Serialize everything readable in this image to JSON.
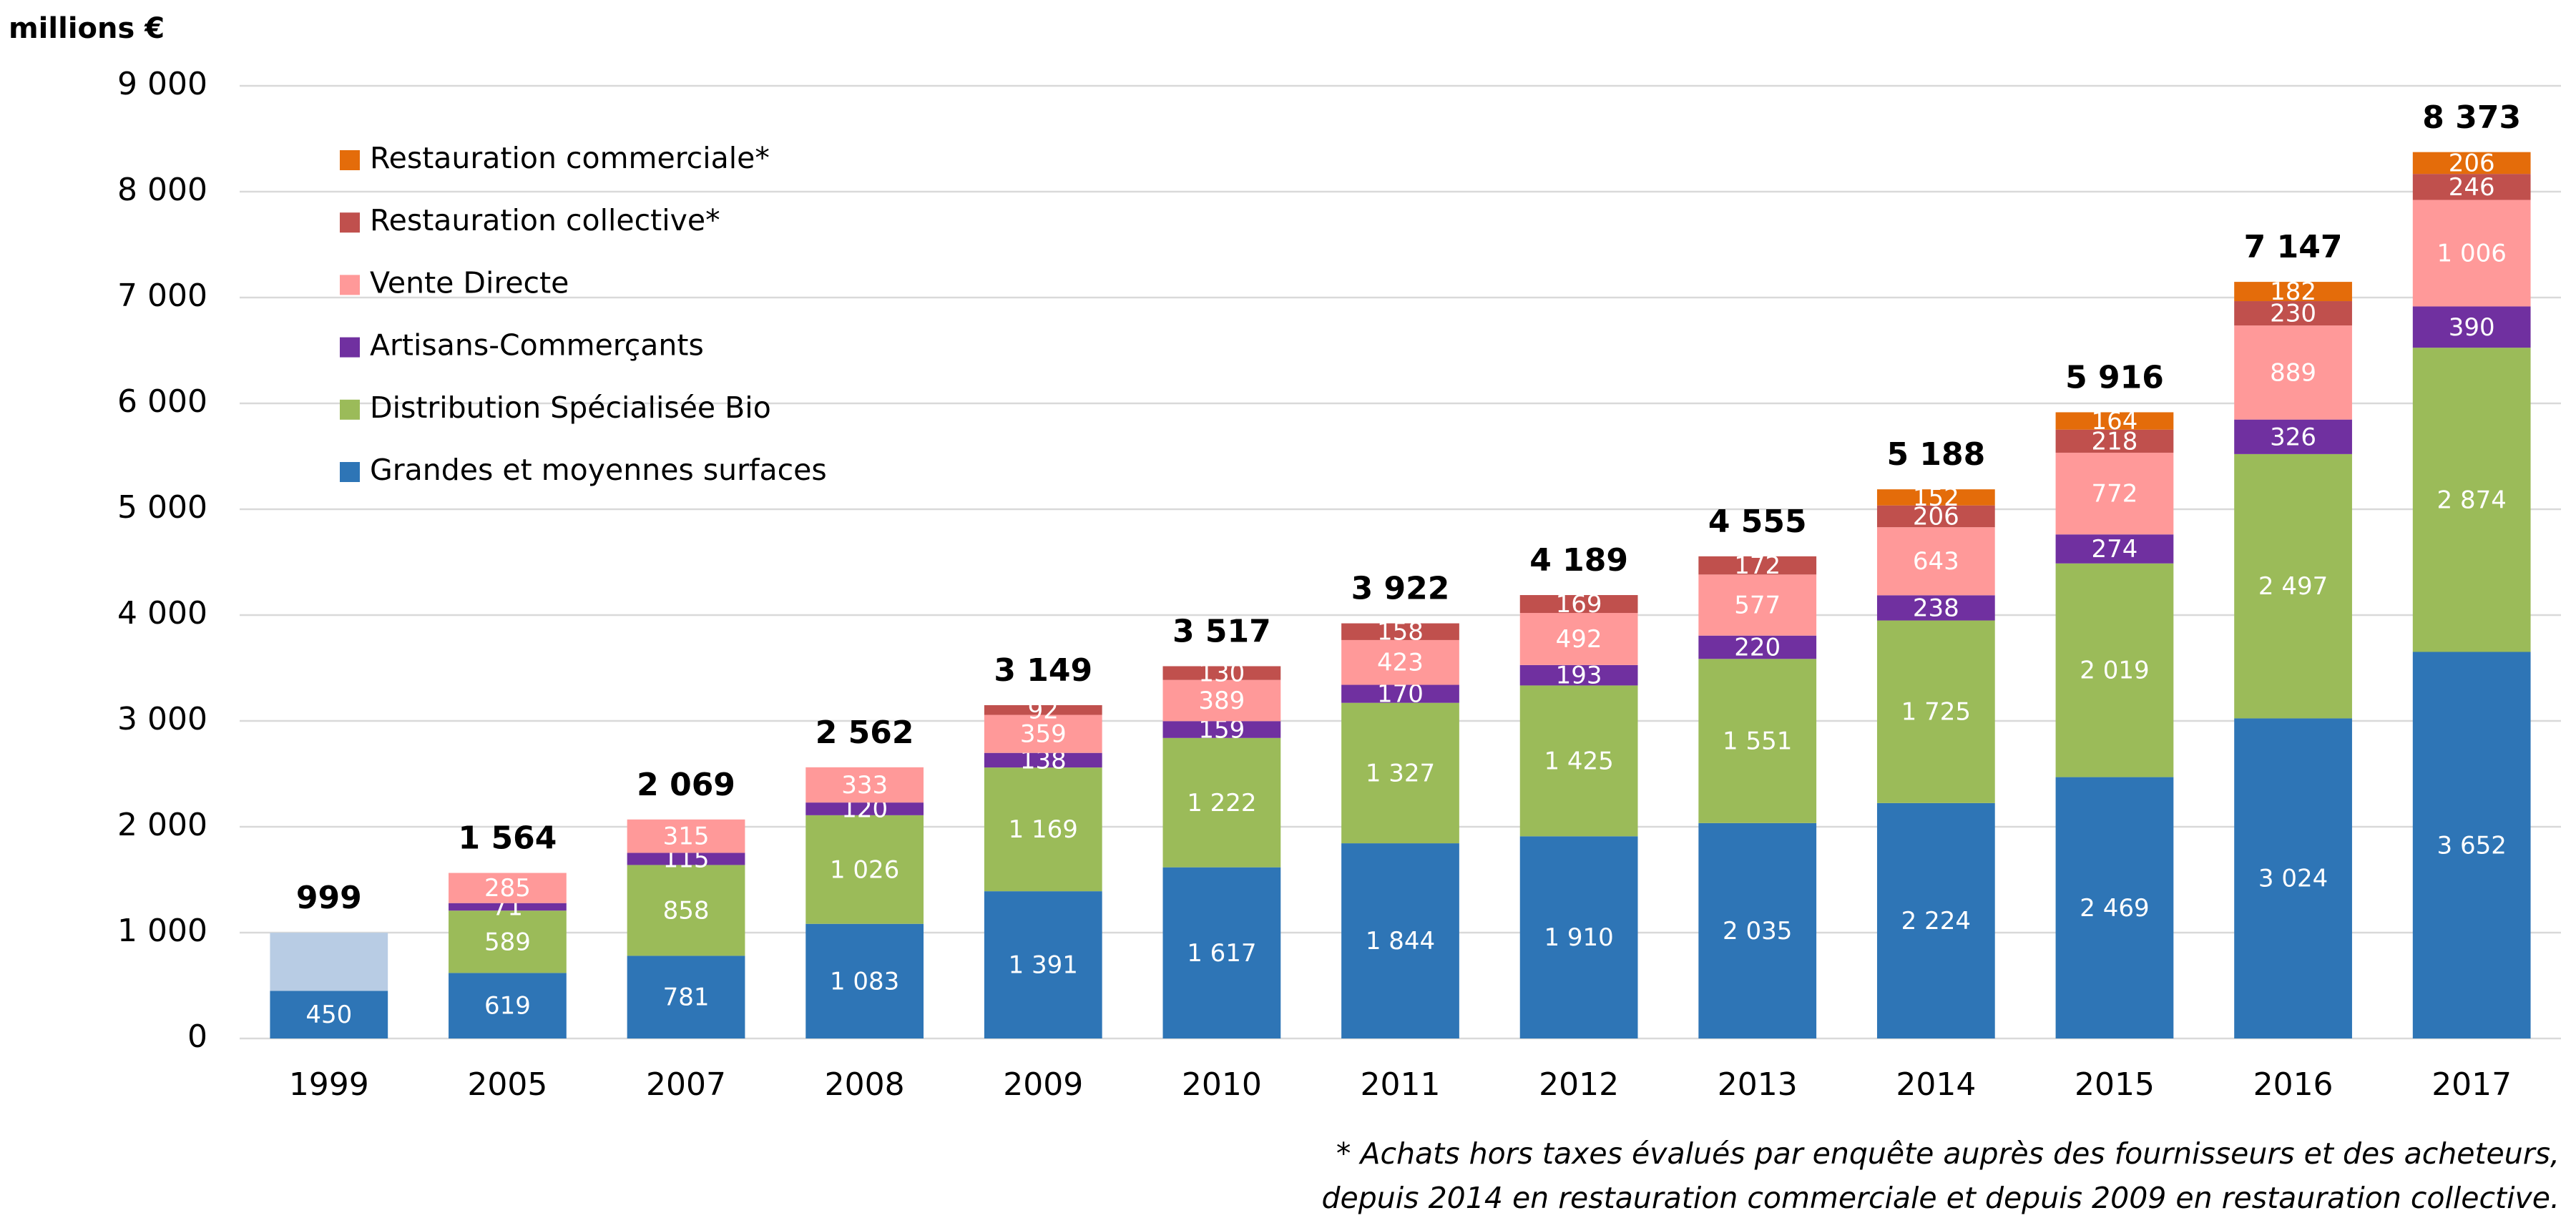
{
  "chart_data": {
    "type": "stacked_bar",
    "ylabel": "millions €",
    "categories": [
      "1999",
      "2005",
      "2007",
      "2008",
      "2009",
      "2010",
      "2011",
      "2012",
      "2013",
      "2014",
      "2015",
      "2016",
      "2017"
    ],
    "series": [
      {
        "name": "Grandes et moyennes surfaces",
        "color": "#2e75b6",
        "values": [
          450,
          619,
          781,
          1083,
          1391,
          1617,
          1844,
          1910,
          2035,
          2224,
          2469,
          3024,
          3652
        ],
        "value_labels": [
          null,
          null,
          null,
          "1 083",
          "1 391",
          "1 617",
          "1 844",
          "1 910",
          "2 035",
          "2 224",
          "2 469",
          "3 024",
          "3 652"
        ]
      },
      {
        "color": "#b8cce4",
        "values": [
          549,
          null,
          null,
          null,
          null,
          null,
          null,
          null,
          null,
          null,
          null,
          null,
          null
        ]
      },
      {
        "name": "Distribution Spécialisée Bio",
        "color": "#9bbb59",
        "values": [
          null,
          589,
          858,
          1026,
          1169,
          1222,
          1327,
          1425,
          1551,
          1725,
          2019,
          2497,
          2874
        ],
        "value_labels": [
          null,
          null,
          null,
          "1 026",
          "1 169",
          "1 222",
          "1 327",
          "1 425",
          "1 551",
          "1 725",
          "2 019",
          "2 497",
          "2 874"
        ]
      },
      {
        "name": "Artisans-Commerçants",
        "color": "#7030a0",
        "values": [
          null,
          71,
          115,
          120,
          138,
          159,
          170,
          193,
          220,
          238,
          274,
          326,
          390
        ]
      },
      {
        "name": "Vente Directe",
        "color": "#ff9999",
        "values": [
          null,
          285,
          315,
          333,
          359,
          389,
          423,
          492,
          577,
          643,
          772,
          889,
          1006
        ],
        "value_labels": [
          null,
          null,
          null,
          null,
          null,
          null,
          null,
          null,
          null,
          null,
          null,
          null,
          "1 006"
        ]
      },
      {
        "name": "Restauration collective*",
        "color": "#c0504d",
        "values": [
          null,
          null,
          null,
          null,
          92,
          130,
          158,
          169,
          172,
          206,
          218,
          230,
          246
        ]
      },
      {
        "name": "Restauration commerciale*",
        "color": "#e46c0a",
        "values": [
          null,
          null,
          null,
          null,
          null,
          null,
          null,
          null,
          null,
          152,
          164,
          182,
          206
        ]
      }
    ],
    "totals": [
      999,
      1564,
      2069,
      2562,
      3149,
      3517,
      3922,
      4189,
      4555,
      5188,
      5916,
      7147,
      8373
    ],
    "total_labels": [
      null,
      "1 564",
      "2 069",
      "2 562",
      "3 149",
      "3 517",
      "3 922",
      "4 189",
      "4 555",
      "5 188",
      "5 916",
      "7 147",
      "8 373"
    ],
    "ylim": [
      0,
      9000
    ],
    "yticks": [
      0,
      {
        "value": 1000,
        "label": "1 000"
      },
      {
        "value": 2000,
        "label": "2 000"
      },
      {
        "value": 3000,
        "label": "3 000"
      },
      {
        "value": 4000,
        "label": "4 000"
      },
      {
        "value": 5000,
        "label": "5 000"
      },
      {
        "value": 6000,
        "label": "6 000"
      },
      {
        "value": 7000,
        "label": "7 000"
      },
      {
        "value": 8000,
        "label": "8 000"
      },
      {
        "value": 9000,
        "label": "9 000"
      }
    ],
    "grid": true,
    "legend": "upper left",
    "footnote": [
      "* Achats hors taxes évalués par enquête auprès des fournisseurs et des acheteurs,",
      "depuis 2014 en restauration commerciale et depuis 2009 en restauration collective."
    ]
  }
}
